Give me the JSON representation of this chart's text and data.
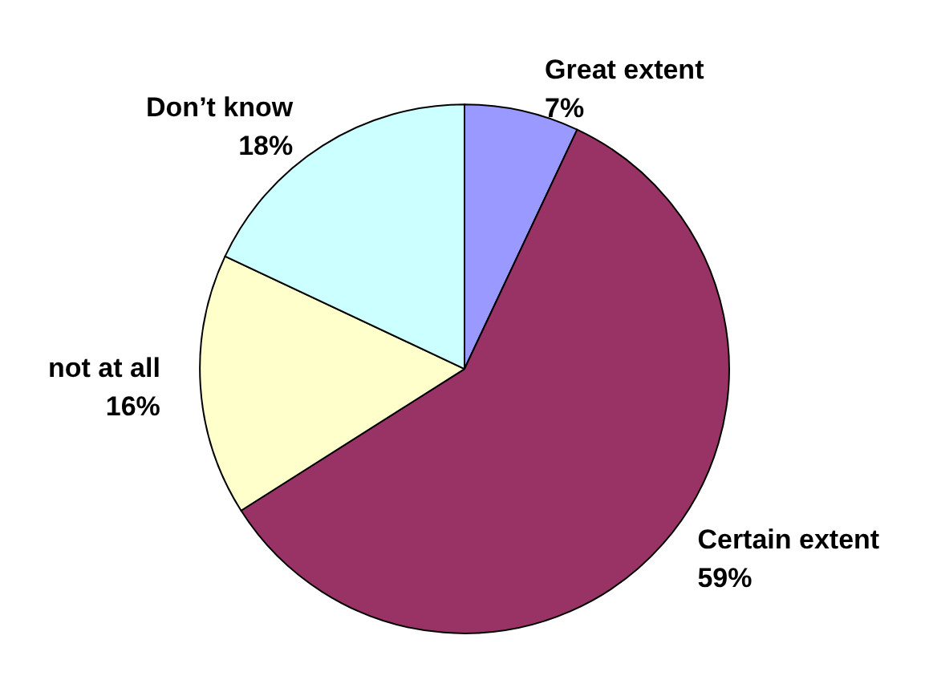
{
  "chart_data": {
    "type": "pie",
    "categories": [
      "Great extent",
      "Certain extent",
      "not at all",
      "Don’t know"
    ],
    "values": [
      7,
      59,
      16,
      18
    ],
    "value_labels": [
      "7%",
      "59%",
      "16%",
      "18%"
    ],
    "colors": [
      "#9999ff",
      "#993366",
      "#ffffcc",
      "#ccffff"
    ],
    "legend": false
  }
}
